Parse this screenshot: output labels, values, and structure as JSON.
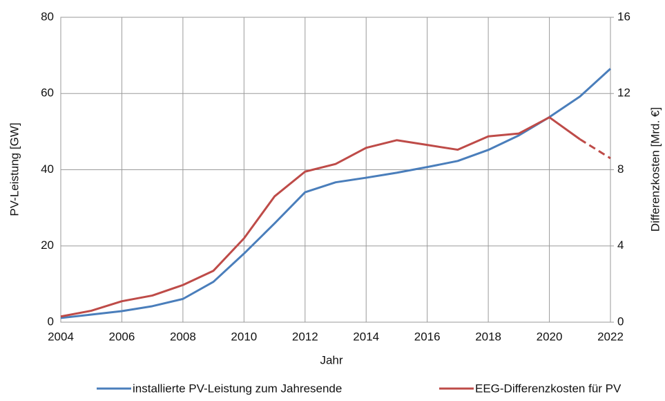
{
  "chart_data": {
    "type": "line",
    "x": [
      2004,
      2005,
      2006,
      2007,
      2008,
      2009,
      2010,
      2011,
      2012,
      2013,
      2014,
      2015,
      2016,
      2017,
      2018,
      2019,
      2020,
      2021,
      2022
    ],
    "series": [
      {
        "name": "installierte PV-Leistung zum Jahresende",
        "color": "#4a7ebb",
        "values": [
          1.1,
          2.0,
          2.9,
          4.2,
          6.1,
          10.6,
          18.0,
          25.9,
          34.1,
          36.7,
          37.9,
          39.2,
          40.7,
          42.3,
          45.2,
          49.0,
          53.8,
          59.2,
          66.5
        ]
      },
      {
        "name": "EEG-Differenzkosten für PV",
        "color": "#be4b48",
        "axis": "y2",
        "dashed_from": 2021,
        "values": [
          0.3,
          0.6,
          1.1,
          1.4,
          1.95,
          2.7,
          4.4,
          6.6,
          7.9,
          8.3,
          9.15,
          9.55,
          9.3,
          9.05,
          9.75,
          9.9,
          10.75,
          9.6,
          8.6
        ]
      }
    ],
    "x_label": "Jahr",
    "y_label": "PV-Leistung [GW]",
    "y2_label": "Differenzkosten [Mrd. €]",
    "xlim": [
      2004,
      2022
    ],
    "xticks": [
      2004,
      2006,
      2008,
      2010,
      2012,
      2014,
      2016,
      2018,
      2020,
      2022
    ],
    "ylim": [
      0,
      80
    ],
    "yticks": [
      0,
      20,
      40,
      60,
      80
    ],
    "y2lim": [
      0,
      16
    ],
    "y2ticks": [
      0,
      4,
      8,
      12,
      16
    ],
    "grid": true,
    "legend": "bottom"
  }
}
